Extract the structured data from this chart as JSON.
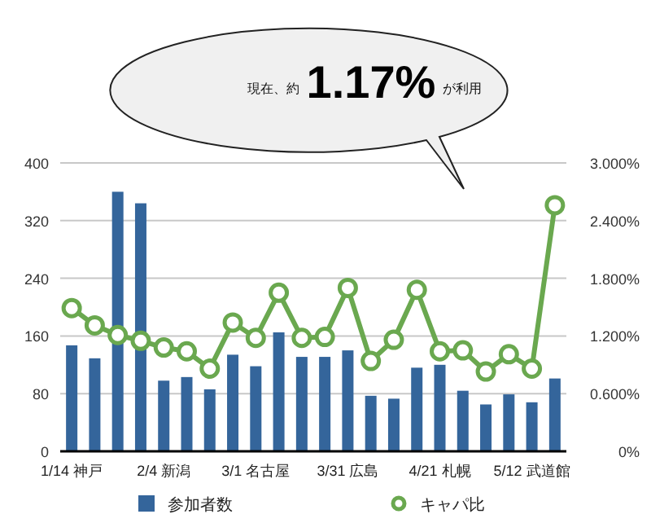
{
  "chart_data": {
    "type": "bar",
    "categories": [
      "1/14 神戸",
      null,
      null,
      null,
      "2/4 新潟",
      null,
      null,
      null,
      "3/1 名古屋",
      null,
      null,
      null,
      "3/31 広島",
      null,
      null,
      null,
      "4/21 札幌",
      null,
      null,
      null,
      "5/12 武道館",
      null
    ],
    "series": [
      {
        "name": "参加者数",
        "color": "#34659b",
        "values": [
          147,
          129,
          360,
          344,
          98,
          103,
          86,
          134,
          118,
          165,
          131,
          131,
          140,
          77,
          73,
          116,
          120,
          84,
          65,
          79,
          68,
          101
        ]
      },
      {
        "name": "キャパ比",
        "color": "#6aa84f",
        "type": "line",
        "axis": "y2",
        "values": [
          1.49,
          1.31,
          1.21,
          1.15,
          1.08,
          1.04,
          0.86,
          1.34,
          1.18,
          1.65,
          1.18,
          1.19,
          1.7,
          0.94,
          1.16,
          1.68,
          1.04,
          1.05,
          0.83,
          1.01,
          0.86,
          2.56
        ]
      }
    ],
    "ylim": [
      0,
      400
    ],
    "yticks": [
      0,
      80,
      160,
      240,
      320,
      400
    ],
    "y2lim": [
      0,
      3
    ],
    "y2ticks": [
      {
        "value": 0,
        "label": "0%"
      },
      {
        "value": 0.6,
        "label": "0.600%"
      },
      {
        "value": 1.2,
        "label": "1.200%"
      },
      {
        "value": 1.8,
        "label": "1.800%"
      },
      {
        "value": 2.4,
        "label": "2.400%"
      },
      {
        "value": 3,
        "label": "3.000%"
      }
    ],
    "grid": "y",
    "legend": "bottom",
    "marker": "circle",
    "annotations": [
      "現在、約",
      "1.17%",
      "が利用"
    ]
  }
}
